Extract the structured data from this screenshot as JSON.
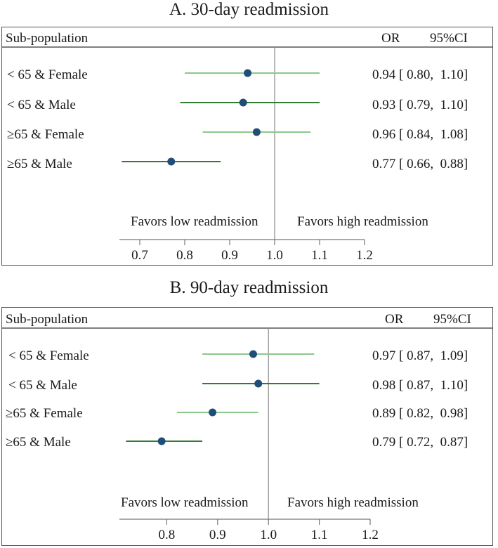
{
  "chart_data": [
    {
      "type": "forest",
      "title": "A. 30-day readmission",
      "header": {
        "population": "Sub-population",
        "or": "OR",
        "ci": "95%CI"
      },
      "rows": [
        {
          "label": "< 65 & Female",
          "or": 0.94,
          "lo": 0.8,
          "hi": 1.1,
          "or_text": "0.94",
          "lo_text": "0.80",
          "hi_text": "1.10",
          "color": "#8cc88c"
        },
        {
          "label": "< 65 & Male",
          "or": 0.93,
          "lo": 0.79,
          "hi": 1.1,
          "or_text": "0.93",
          "lo_text": "0.79",
          "hi_text": "1.10",
          "color": "#2e7d32"
        },
        {
          "label": "≥65 & Female",
          "or": 0.96,
          "lo": 0.84,
          "hi": 1.08,
          "or_text": "0.96",
          "lo_text": "0.84",
          "hi_text": "1.08",
          "color": "#8cc88c"
        },
        {
          "label": "≥65 & Male",
          "or": 0.77,
          "lo": 0.66,
          "hi": 0.88,
          "or_text": "0.77",
          "lo_text": "0.66",
          "hi_text": "0.88",
          "color": "#2e7d32"
        }
      ],
      "favors_low": "Favors low readmission",
      "favors_high": "Favors high readmission",
      "xlim": [
        0.65,
        1.2
      ],
      "ticks": [
        0.7,
        0.8,
        0.9,
        1.0,
        1.1,
        1.2
      ],
      "tick_labels": [
        "0.7",
        "0.8",
        "0.9",
        "1.0",
        "1.1",
        "1.2"
      ],
      "reference": 1.0,
      "point_color": "#1f4e79"
    },
    {
      "type": "forest",
      "title": "B. 90-day readmission",
      "header": {
        "population": "Sub-population",
        "or": "OR",
        "ci": "95%CI"
      },
      "rows": [
        {
          "label": "< 65 & Female",
          "or": 0.97,
          "lo": 0.87,
          "hi": 1.09,
          "or_text": "0.97",
          "lo_text": "0.87",
          "hi_text": "1.09",
          "color": "#8cc88c"
        },
        {
          "label": "< 65 & Male",
          "or": 0.98,
          "lo": 0.87,
          "hi": 1.1,
          "or_text": "0.98",
          "lo_text": "0.87",
          "hi_text": "1.10",
          "color": "#2e7d32"
        },
        {
          "label": "≥65 & Female",
          "or": 0.89,
          "lo": 0.82,
          "hi": 0.98,
          "or_text": "0.89",
          "lo_text": "0.82",
          "hi_text": "0.98",
          "color": "#8cc88c"
        },
        {
          "label": "≥65 & Male",
          "or": 0.79,
          "lo": 0.72,
          "hi": 0.87,
          "or_text": "0.79",
          "lo_text": "0.72",
          "hi_text": "0.87",
          "color": "#2e7d32"
        }
      ],
      "favors_low": "Favors low readmission",
      "favors_high": "Favors high readmission",
      "xlim": [
        0.7,
        1.2
      ],
      "ticks": [
        0.8,
        0.9,
        1.0,
        1.1,
        1.2
      ],
      "tick_labels": [
        "0.8",
        "0.9",
        "1.0",
        "1.1",
        "1.2"
      ],
      "reference": 1.0,
      "point_color": "#1f4e79"
    }
  ]
}
